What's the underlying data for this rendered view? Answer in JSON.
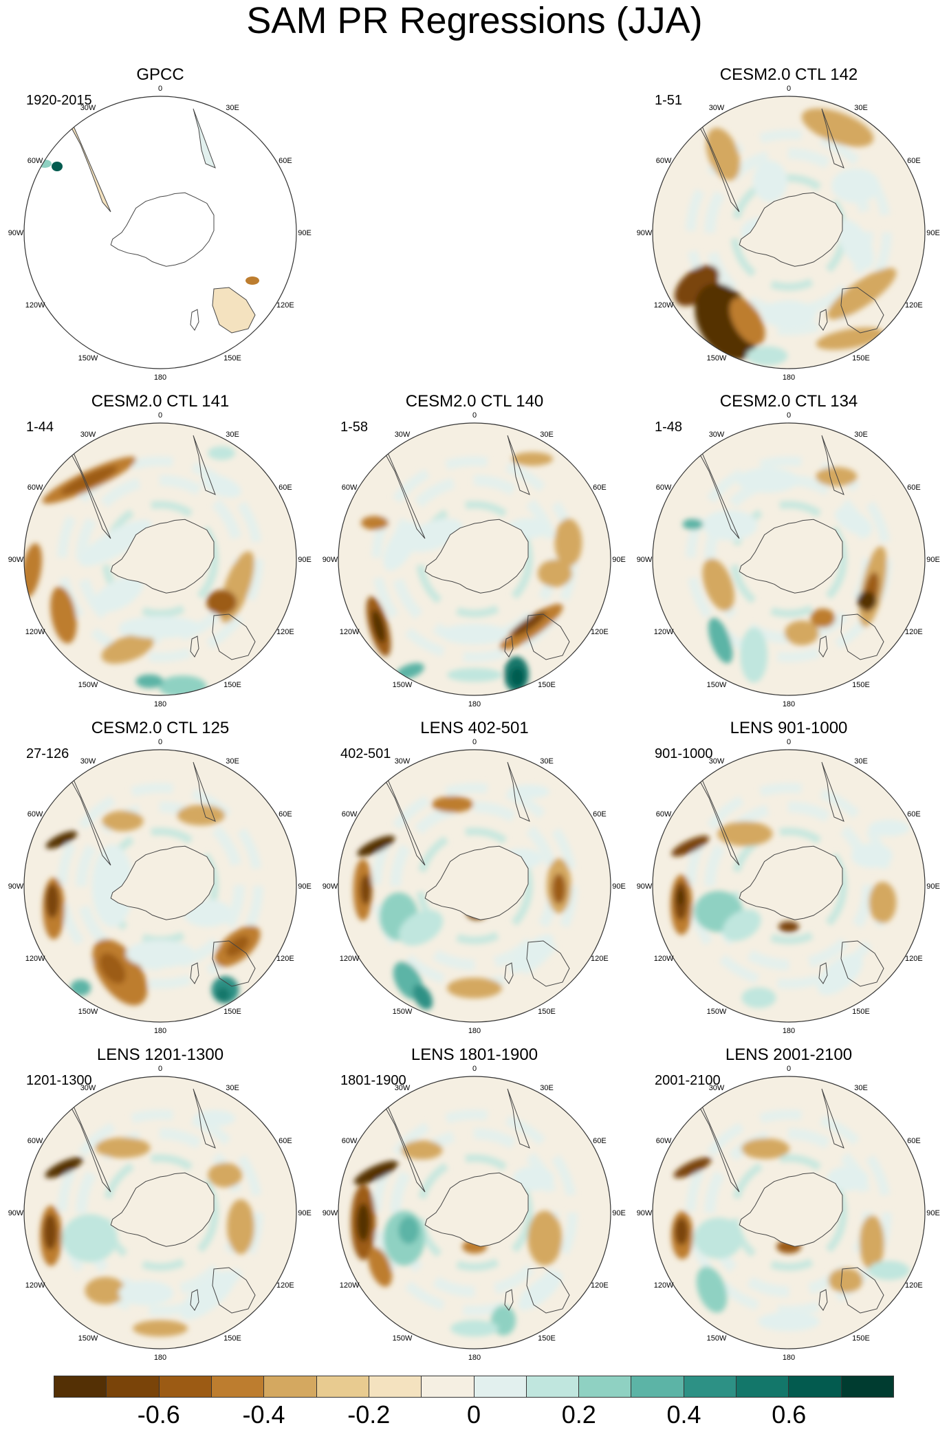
{
  "title": "SAM PR Regressions (JJA)",
  "longitude_labels": [
    "0",
    "30E",
    "60E",
    "90E",
    "120E",
    "150E",
    "180",
    "150W",
    "120W",
    "90W",
    "60W",
    "30W"
  ],
  "panels": [
    {
      "title": "GPCC",
      "range": "1920-2015",
      "row": 0,
      "col": 0,
      "pattern": "gpcc"
    },
    {
      "title": "CESM2.0 CTL 142",
      "range": "1-51",
      "row": 0,
      "col": 2,
      "pattern": "m1"
    },
    {
      "title": "CESM2.0 CTL 141",
      "range": "1-44",
      "row": 1,
      "col": 0,
      "pattern": "m2"
    },
    {
      "title": "CESM2.0 CTL 140",
      "range": "1-58",
      "row": 1,
      "col": 1,
      "pattern": "m3"
    },
    {
      "title": "CESM2.0 CTL 134",
      "range": "1-48",
      "row": 1,
      "col": 2,
      "pattern": "m4"
    },
    {
      "title": "CESM2.0 CTL 125",
      "range": "27-126",
      "row": 2,
      "col": 0,
      "pattern": "m5"
    },
    {
      "title": "LENS 402-501",
      "range": "402-501",
      "row": 2,
      "col": 1,
      "pattern": "l1"
    },
    {
      "title": "LENS 901-1000",
      "range": "901-1000",
      "row": 2,
      "col": 2,
      "pattern": "l2"
    },
    {
      "title": "LENS 1201-1300",
      "range": "1201-1300",
      "row": 3,
      "col": 0,
      "pattern": "l3"
    },
    {
      "title": "LENS 1801-1900",
      "range": "1801-1900",
      "row": 3,
      "col": 1,
      "pattern": "l4"
    },
    {
      "title": "LENS 2001-2100",
      "range": "2001-2100",
      "row": 3,
      "col": 2,
      "pattern": "l5"
    }
  ],
  "colorbar": {
    "colors": [
      "#543005",
      "#7a4409",
      "#9c5b14",
      "#bd7d2f",
      "#d4a860",
      "#e8cb90",
      "#f4e2bf",
      "#f5efe2",
      "#e2f0ee",
      "#c0e6de",
      "#8fd1c2",
      "#5cb4a6",
      "#2d9185",
      "#13776a",
      "#035b4f",
      "#003c30"
    ],
    "tick_labels": [
      "-0.6",
      "-0.4",
      "-0.2",
      "0",
      "0.2",
      "0.4",
      "0.6"
    ],
    "tick_values": [
      -0.6,
      -0.4,
      -0.2,
      0,
      0.2,
      0.4,
      0.6
    ],
    "range": [
      -0.8,
      0.8
    ]
  },
  "chart_data": {
    "type": "heatmap",
    "title": "SAM PR Regressions (JJA)",
    "projection": "south polar stereographic",
    "variable": "PR regression onto SAM index",
    "colorbar_range": [
      -0.8,
      0.8
    ],
    "colorbar_ticks": [
      -0.6,
      -0.4,
      -0.2,
      0,
      0.2,
      0.4,
      0.6
    ],
    "panels": [
      "GPCC",
      "CESM2.0 CTL 142",
      "CESM2.0 CTL 141",
      "CESM2.0 CTL 140",
      "CESM2.0 CTL 134",
      "CESM2.0 CTL 125",
      "LENS 402-501",
      "LENS 901-1000",
      "LENS 1201-1300",
      "LENS 1801-1900",
      "LENS 2001-2100"
    ],
    "periods": [
      "1920-2015",
      "1-51",
      "1-44",
      "1-58",
      "1-48",
      "27-126",
      "402-501",
      "901-1000",
      "1201-1300",
      "1801-1900",
      "2001-2100"
    ]
  }
}
